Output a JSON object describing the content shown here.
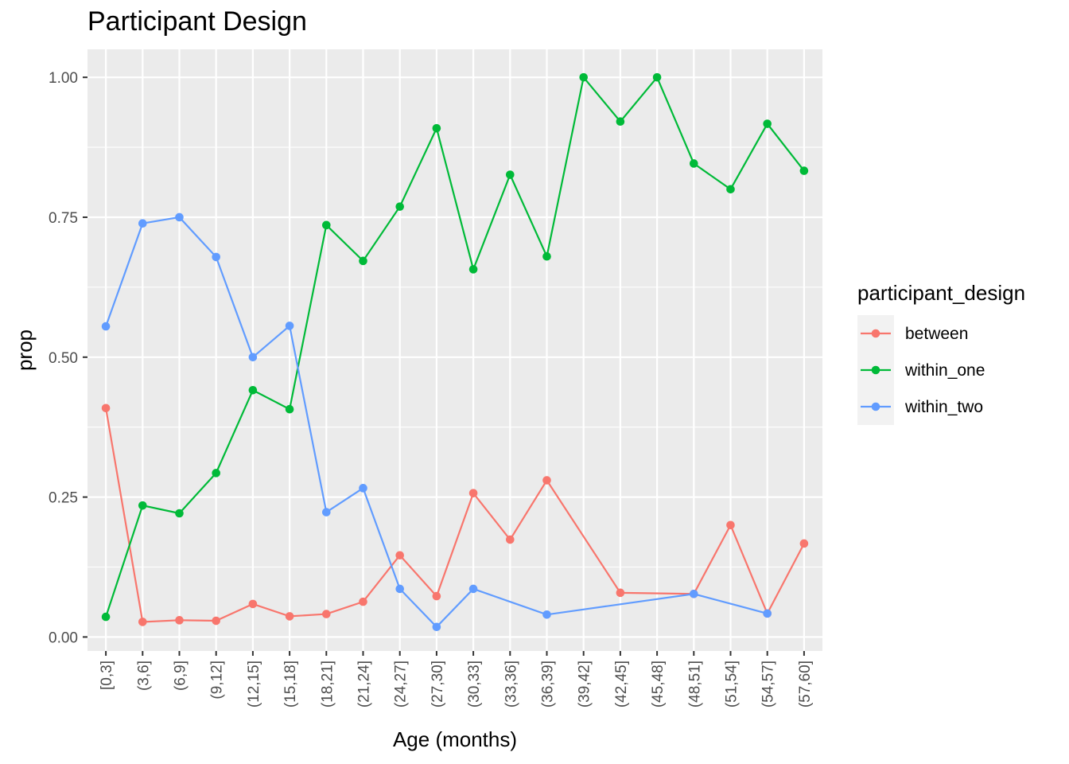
{
  "chart_data": {
    "type": "line",
    "title": "Participant Design",
    "xlabel": "Age (months)",
    "ylabel": "prop",
    "categories": [
      "[0,3]",
      "(3,6]",
      "(6,9]",
      "(9,12]",
      "(12,15]",
      "(15,18]",
      "(18,21]",
      "(21,24]",
      "(24,27]",
      "(27,30]",
      "(30,33]",
      "(33,36]",
      "(36,39]",
      "(39,42]",
      "(42,45]",
      "(45,48]",
      "(48,51]",
      "(51,54]",
      "(54,57]",
      "(57,60]"
    ],
    "ylim": [
      -0.025,
      1.05
    ],
    "yticks": [
      0.0,
      0.25,
      0.5,
      0.75,
      1.0
    ],
    "ytick_labels": [
      "0.00",
      "0.25",
      "0.50",
      "0.75",
      "1.00"
    ],
    "grid": true,
    "legend": {
      "title": "participant_design",
      "position": "right"
    },
    "series": [
      {
        "name": "between",
        "color": "#F8766D",
        "values": [
          0.409,
          0.027,
          0.03,
          0.029,
          0.059,
          0.037,
          0.041,
          0.063,
          0.146,
          0.073,
          0.257,
          0.174,
          0.28,
          null,
          0.079,
          null,
          0.077,
          0.2,
          0.042,
          0.167
        ]
      },
      {
        "name": "within_one",
        "color": "#00BA38",
        "values": [
          0.036,
          0.235,
          0.221,
          0.293,
          0.441,
          0.407,
          0.736,
          0.672,
          0.769,
          0.909,
          0.657,
          0.826,
          0.68,
          1.0,
          0.921,
          1.0,
          0.846,
          0.8,
          0.917,
          0.833
        ]
      },
      {
        "name": "within_two",
        "color": "#619CFF",
        "values": [
          0.555,
          0.739,
          0.75,
          0.679,
          0.5,
          0.556,
          0.223,
          0.266,
          0.086,
          0.018,
          0.086,
          null,
          0.04,
          null,
          null,
          null,
          0.077,
          null,
          0.042,
          null
        ]
      }
    ]
  }
}
